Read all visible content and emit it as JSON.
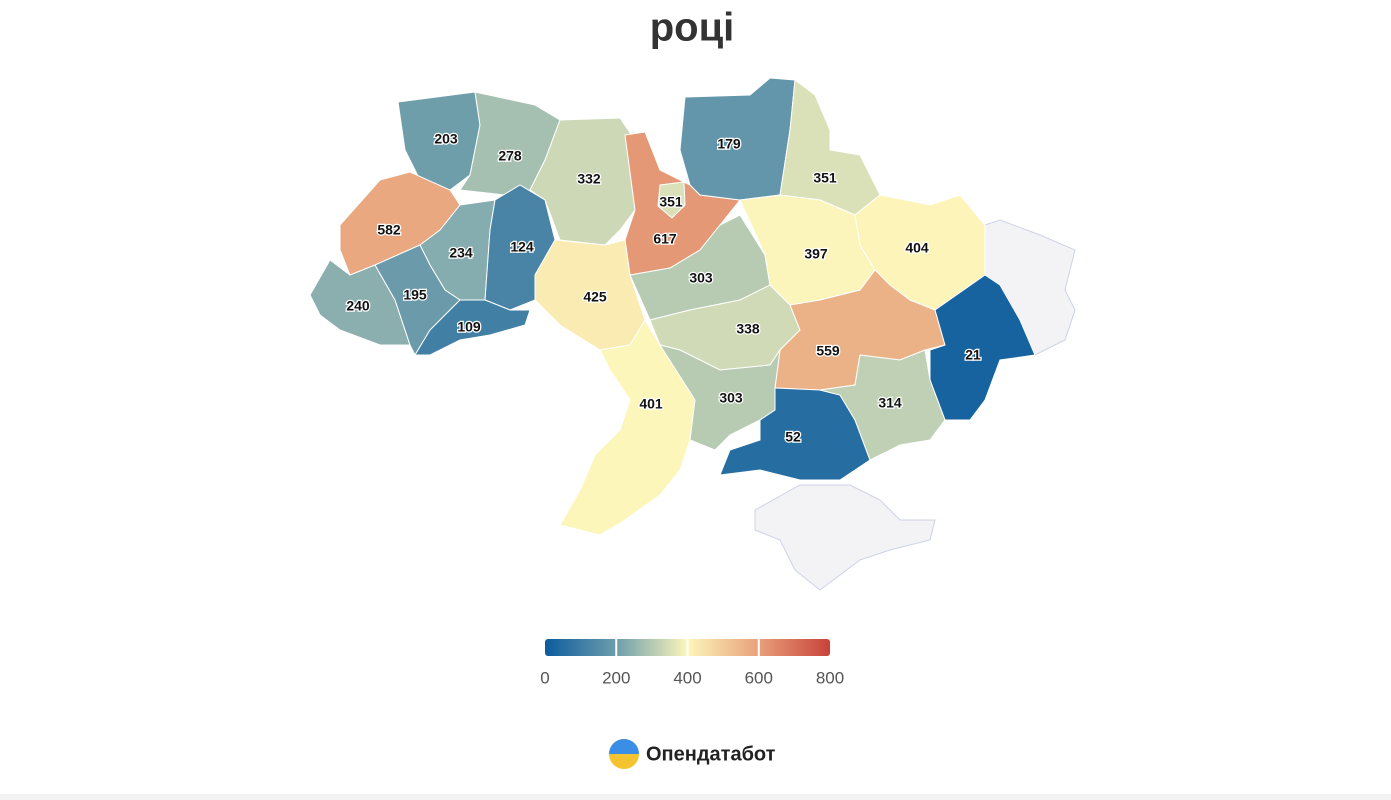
{
  "chart_data": {
    "type": "choropleth",
    "title": "році",
    "values": [
      203,
      278,
      332,
      617,
      351,
      179,
      351,
      582,
      234,
      124,
      425,
      303,
      397,
      404,
      240,
      195,
      109,
      338,
      559,
      21,
      401,
      303,
      52,
      314
    ],
    "colorbar": {
      "lim": [
        0,
        800
      ],
      "ticks": [
        0,
        200,
        400,
        600,
        800
      ],
      "colors": [
        "#0d5c9e",
        "#6d9dab",
        "#fdf6bb",
        "#e8a07a",
        "#c8423a"
      ]
    }
  },
  "footer": {
    "brand": "Опендатабот"
  }
}
